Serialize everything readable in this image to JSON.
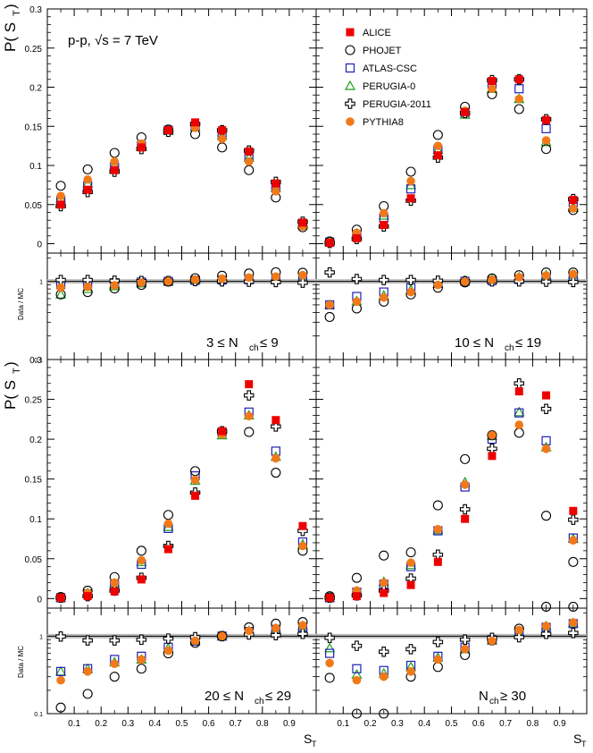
{
  "figure": {
    "energy_label": "p-p, √s = 7 TeV",
    "ylabel_main": "P( S",
    "ylabel_main_sub": "T",
    "ylabel_ratio": "Data / MC",
    "xlabel": "S",
    "xlabel_sub": "T"
  },
  "colors": {
    "ALICE": "#ee0000",
    "PHOJET": "#000000",
    "ATLAS-CSC": "#1f1fb4",
    "PERUGIA-0": "#1a9e1a",
    "PERUGIA-2011": "#000000",
    "PYTHIA8": "#f07a1a"
  },
  "legend": [
    {
      "name": "ALICE",
      "marker": "filled-square"
    },
    {
      "name": "PHOJET",
      "marker": "open-circle"
    },
    {
      "name": "ATLAS-CSC",
      "marker": "open-square"
    },
    {
      "name": "PERUGIA-0",
      "marker": "open-triangle"
    },
    {
      "name": "PERUGIA-2011",
      "marker": "open-cross"
    },
    {
      "name": "PYTHIA8",
      "marker": "filled-circle"
    }
  ],
  "chart_data": [
    {
      "type": "scatter",
      "panel": "top-left",
      "label_main": "3 ≤ N",
      "label_sub": "ch",
      "label_tail": " ≤ 9",
      "xlim": [
        0,
        1
      ],
      "ylim": [
        -0.012,
        0.3
      ],
      "yticks": [
        0,
        0.05,
        0.1,
        0.15,
        0.2,
        0.25,
        0.3
      ],
      "ytick_labels": [
        "0",
        "0.05",
        "0.1",
        "0.15",
        "0.2",
        "0.25",
        "0.3"
      ],
      "ratio_ylim": [
        0.1,
        2.3
      ],
      "ratio_ytick_labels": [
        "0.1",
        "1"
      ],
      "x": [
        0.05,
        0.15,
        0.25,
        0.35,
        0.45,
        0.55,
        0.65,
        0.75,
        0.85,
        0.95
      ],
      "series": [
        {
          "name": "ALICE",
          "values": [
            0.05,
            0.069,
            0.094,
            0.123,
            0.145,
            0.155,
            0.145,
            0.118,
            0.077,
            0.027
          ]
        },
        {
          "name": "PHOJET",
          "values": [
            0.074,
            0.095,
            0.116,
            0.136,
            0.146,
            0.14,
            0.123,
            0.094,
            0.059,
            0.021
          ]
        },
        {
          "name": "ATLAS-CSC",
          "values": [
            0.055,
            0.074,
            0.098,
            0.125,
            0.145,
            0.15,
            0.14,
            0.112,
            0.073,
            0.026
          ]
        },
        {
          "name": "PERUGIA-0",
          "values": [
            0.058,
            0.077,
            0.1,
            0.125,
            0.144,
            0.149,
            0.138,
            0.11,
            0.071,
            0.024
          ]
        },
        {
          "name": "PERUGIA-2011",
          "values": [
            0.048,
            0.066,
            0.092,
            0.121,
            0.143,
            0.153,
            0.145,
            0.119,
            0.079,
            0.028
          ]
        },
        {
          "name": "PYTHIA8",
          "values": [
            0.061,
            0.082,
            0.105,
            0.128,
            0.145,
            0.148,
            0.134,
            0.105,
            0.067,
            0.022
          ]
        }
      ],
      "ratio_series": [
        {
          "name": "PHOJET",
          "values": [
            0.68,
            0.73,
            0.81,
            0.9,
            0.99,
            1.1,
            1.18,
            1.26,
            1.31,
            1.29
          ]
        },
        {
          "name": "ATLAS-CSC",
          "values": [
            0.91,
            0.93,
            0.96,
            0.98,
            1.0,
            1.03,
            1.04,
            1.05,
            1.05,
            1.04
          ]
        },
        {
          "name": "PERUGIA-0",
          "values": [
            0.68,
            0.8,
            0.87,
            0.94,
            1.0,
            1.04,
            1.06,
            1.08,
            1.09,
            1.1
          ]
        },
        {
          "name": "PERUGIA-2011",
          "values": [
            1.04,
            1.04,
            1.02,
            1.01,
            1.01,
            1.01,
            1.0,
            0.99,
            0.98,
            0.96
          ]
        },
        {
          "name": "PYTHIA8",
          "values": [
            0.83,
            0.85,
            0.89,
            0.96,
            1.0,
            1.05,
            1.08,
            1.12,
            1.15,
            1.2
          ]
        }
      ]
    },
    {
      "type": "scatter",
      "panel": "top-right",
      "label_main": "10 ≤ N",
      "label_sub": "ch",
      "label_tail": " ≤ 19",
      "xlim": [
        0,
        1
      ],
      "ylim": [
        -0.012,
        0.3
      ],
      "yticks": [
        0,
        0.05,
        0.1,
        0.15,
        0.2,
        0.25,
        0.3
      ],
      "ratio_ylim": [
        0.1,
        2.3
      ],
      "x": [
        0.05,
        0.15,
        0.25,
        0.35,
        0.45,
        0.55,
        0.65,
        0.75,
        0.85,
        0.95
      ],
      "series": [
        {
          "name": "ALICE",
          "values": [
            0.001,
            0.007,
            0.024,
            0.058,
            0.113,
            0.168,
            0.208,
            0.21,
            0.158,
            0.056
          ]
        },
        {
          "name": "PHOJET",
          "values": [
            0.003,
            0.018,
            0.048,
            0.092,
            0.139,
            0.175,
            0.191,
            0.172,
            0.121,
            0.043
          ]
        },
        {
          "name": "ATLAS-CSC",
          "values": [
            0.002,
            0.011,
            0.033,
            0.07,
            0.12,
            0.168,
            0.204,
            0.198,
            0.147,
            0.053
          ]
        },
        {
          "name": "PERUGIA-0",
          "values": [
            0.002,
            0.013,
            0.036,
            0.075,
            0.12,
            0.165,
            0.198,
            0.185,
            0.13,
            0.046
          ]
        },
        {
          "name": "PERUGIA-2011",
          "values": [
            0.001,
            0.006,
            0.022,
            0.055,
            0.11,
            0.167,
            0.209,
            0.21,
            0.159,
            0.057
          ]
        },
        {
          "name": "PYTHIA8",
          "values": [
            0.002,
            0.014,
            0.039,
            0.08,
            0.125,
            0.17,
            0.198,
            0.185,
            0.132,
            0.045
          ]
        }
      ],
      "ratio_series": [
        {
          "name": "PHOJET",
          "values": [
            0.35,
            0.45,
            0.55,
            0.68,
            0.83,
            0.97,
            1.09,
            1.2,
            1.3,
            1.3
          ]
        },
        {
          "name": "ATLAS-CSC",
          "values": [
            0.5,
            0.64,
            0.73,
            0.83,
            0.94,
            1.0,
            1.02,
            1.06,
            1.08,
            1.06
          ]
        },
        {
          "name": "PERUGIA-0",
          "values": [
            0.5,
            0.56,
            0.66,
            0.78,
            0.93,
            1.03,
            1.06,
            1.13,
            1.2,
            1.22
          ]
        },
        {
          "name": "PERUGIA-2011",
          "values": [
            1.3,
            1.07,
            1.04,
            1.04,
            1.02,
            1.0,
            1.0,
            1.0,
            0.99,
            0.98
          ]
        },
        {
          "name": "PYTHIA8",
          "values": [
            0.5,
            0.55,
            0.62,
            0.73,
            0.9,
            0.99,
            1.05,
            1.13,
            1.19,
            1.24
          ]
        }
      ]
    },
    {
      "type": "scatter",
      "panel": "bottom-left",
      "label_main": "20 ≤ N",
      "label_sub": "ch",
      "label_tail": " ≤ 29",
      "xlim": [
        0,
        1
      ],
      "ylim": [
        -0.012,
        0.3
      ],
      "yticks": [
        0,
        0.05,
        0.1,
        0.15,
        0.2,
        0.25,
        0.3
      ],
      "ratio_ylim": [
        0.1,
        2.3
      ],
      "x": [
        0.05,
        0.15,
        0.25,
        0.35,
        0.45,
        0.55,
        0.65,
        0.75,
        0.85,
        0.95
      ],
      "xticks": [
        0.1,
        0.2,
        0.3,
        0.4,
        0.5,
        0.6,
        0.7,
        0.8,
        0.9
      ],
      "xtick_labels": [
        "0.1",
        "0.2",
        "0.3",
        "0.4",
        "0.5",
        "0.6",
        "0.7",
        "0.8",
        "0.9"
      ],
      "series": [
        {
          "name": "ALICE",
          "values": [
            0.001,
            0.003,
            0.009,
            0.024,
            0.062,
            0.129,
            0.21,
            0.269,
            0.224,
            0.091
          ]
        },
        {
          "name": "PHOJET",
          "values": [
            0.002,
            0.01,
            0.027,
            0.06,
            0.105,
            0.16,
            0.208,
            0.209,
            0.158,
            0.06
          ]
        },
        {
          "name": "ATLAS-CSC",
          "values": [
            0.001,
            0.006,
            0.017,
            0.043,
            0.088,
            0.154,
            0.209,
            0.234,
            0.185,
            0.071
          ]
        },
        {
          "name": "PERUGIA-0",
          "values": [
            0.001,
            0.007,
            0.019,
            0.046,
            0.09,
            0.148,
            0.205,
            0.23,
            0.178,
            0.068
          ]
        },
        {
          "name": "PERUGIA-2011",
          "values": [
            0.001,
            0.003,
            0.01,
            0.026,
            0.066,
            0.133,
            0.21,
            0.255,
            0.216,
            0.085
          ]
        },
        {
          "name": "PYTHIA8",
          "values": [
            0.001,
            0.007,
            0.02,
            0.048,
            0.094,
            0.149,
            0.206,
            0.229,
            0.176,
            0.066
          ]
        }
      ],
      "ratio_series": [
        {
          "name": "PHOJET",
          "values": [
            0.12,
            0.18,
            0.3,
            0.38,
            0.6,
            0.82,
            1.0,
            1.3,
            1.45,
            1.52
          ]
        },
        {
          "name": "ATLAS-CSC",
          "values": [
            0.35,
            0.38,
            0.5,
            0.55,
            0.72,
            0.86,
            1.0,
            1.15,
            1.22,
            1.3
          ]
        },
        {
          "name": "PERUGIA-0",
          "values": [
            0.35,
            0.38,
            0.46,
            0.5,
            0.7,
            0.87,
            1.0,
            1.17,
            1.25,
            1.35
          ]
        },
        {
          "name": "PERUGIA-2011",
          "values": [
            0.99,
            0.88,
            0.88,
            0.9,
            0.93,
            0.97,
            1.0,
            1.05,
            1.03,
            1.07
          ]
        },
        {
          "name": "PYTHIA8",
          "values": [
            0.27,
            0.35,
            0.44,
            0.5,
            0.65,
            0.87,
            1.0,
            1.17,
            1.27,
            1.38
          ]
        }
      ]
    },
    {
      "type": "scatter",
      "panel": "bottom-right",
      "label_main": "N",
      "label_sub": "ch",
      "label_tail": " ≥ 30",
      "xlim": [
        0,
        1
      ],
      "ylim": [
        -0.012,
        0.3
      ],
      "yticks": [
        0,
        0.05,
        0.1,
        0.15,
        0.2,
        0.25,
        0.3
      ],
      "ratio_ylim": [
        0.1,
        2.3
      ],
      "x": [
        0.05,
        0.15,
        0.25,
        0.35,
        0.45,
        0.55,
        0.65,
        0.75,
        0.85,
        0.95
      ],
      "xticks": [
        0.1,
        0.2,
        0.3,
        0.4,
        0.5,
        0.6,
        0.7,
        0.8,
        0.9
      ],
      "xtick_labels": [
        "0.1",
        "0.2",
        "0.3",
        "0.4",
        "0.5",
        "0.6",
        "0.7",
        "0.8",
        "0.9"
      ],
      "series": [
        {
          "name": "ALICE",
          "values": [
            0.001,
            0.003,
            0.007,
            0.017,
            0.046,
            0.1,
            0.179,
            0.26,
            0.255,
            0.11
          ]
        },
        {
          "name": "PHOJET",
          "values": [
            0.003,
            0.026,
            0.054,
            0.058,
            0.117,
            0.175,
            0.205,
            0.208,
            0.104,
            0.046
          ]
        },
        {
          "name": "ATLAS-CSC",
          "values": [
            0.001,
            0.008,
            0.018,
            0.04,
            0.085,
            0.14,
            0.2,
            0.233,
            0.198,
            0.076
          ]
        },
        {
          "name": "PERUGIA-0",
          "values": [
            0.001,
            0.009,
            0.021,
            0.042,
            0.086,
            0.146,
            0.204,
            0.234,
            0.19,
            0.075
          ]
        },
        {
          "name": "PERUGIA-2011",
          "values": [
            0.001,
            0.004,
            0.01,
            0.025,
            0.055,
            0.112,
            0.188,
            0.27,
            0.238,
            0.099
          ]
        },
        {
          "name": "PYTHIA8",
          "values": [
            0.001,
            0.01,
            0.02,
            0.045,
            0.087,
            0.143,
            0.205,
            0.218,
            0.188,
            0.073
          ]
        }
      ],
      "ratio_series": [
        {
          "name": "PHOJET",
          "values": [
            0.29,
            0.1,
            0.1,
            0.3,
            0.4,
            0.57,
            0.88,
            1.25,
            2.4,
            2.4
          ]
        },
        {
          "name": "ATLAS-CSC",
          "values": [
            0.6,
            0.38,
            0.36,
            0.42,
            0.55,
            0.72,
            0.9,
            1.12,
            1.3,
            1.45
          ]
        },
        {
          "name": "PERUGIA-0",
          "values": [
            0.7,
            0.32,
            0.33,
            0.4,
            0.53,
            0.68,
            0.88,
            1.1,
            1.35,
            1.47
          ]
        },
        {
          "name": "PERUGIA-2011",
          "values": [
            0.95,
            0.75,
            0.63,
            0.68,
            0.84,
            0.9,
            0.95,
            0.97,
            1.07,
            1.1
          ]
        },
        {
          "name": "PYTHIA8",
          "values": [
            0.45,
            0.27,
            0.3,
            0.35,
            0.5,
            0.68,
            0.87,
            1.2,
            1.35,
            1.5
          ]
        }
      ]
    }
  ]
}
